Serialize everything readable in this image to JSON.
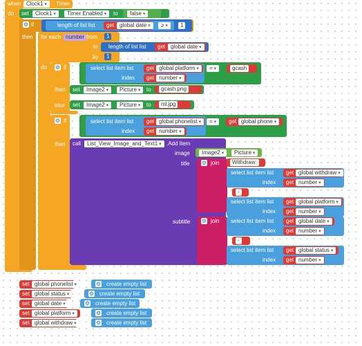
{
  "event": {
    "when": "when",
    "component": "Clock1",
    "event_name": "Timer",
    "do": "do"
  },
  "set_timer": {
    "set": "set",
    "component": "Clock1",
    "property": "Timer Enabled",
    "to": "to",
    "value": "false"
  },
  "if1": {
    "if": "if",
    "then": "then",
    "length_of_list": "length of list  list",
    "get": "get",
    "var": "global date",
    "op": "≥",
    "num": "1"
  },
  "foreach": {
    "for_each": "for each",
    "var": "number",
    "from": "from",
    "from_val": "1",
    "to": "to",
    "length_of_list": "length of list  list",
    "get": "get",
    "list_var": "global date",
    "by": "by",
    "by_val": "1",
    "do": "do"
  },
  "if2": {
    "if": "if",
    "select": "select list item  list",
    "get": "get",
    "list_var": "global platform",
    "index": "index",
    "index_var": "number",
    "op": "=",
    "text": "gcash",
    "then": "then",
    "else": "else",
    "then_set": "set",
    "then_comp": "Image2",
    "then_prop": "Picture",
    "then_to": "to",
    "then_val": "gcash.png",
    "else_set": "set",
    "else_comp": "Image2",
    "else_prop": "Picture",
    "else_to": "to",
    "else_val": "ml.jpg"
  },
  "if3": {
    "if": "if",
    "select": "select list item  list",
    "get": "get",
    "list_var": "global phonelist",
    "index": "index",
    "index_var": "number",
    "op": "=",
    "cmp_var": "global phone",
    "then": "then"
  },
  "call": {
    "call": "call",
    "component": "List_View_Image_and_Text1",
    "method": ".Add Item",
    "image": "image",
    "image_comp": "Image2",
    "image_prop": "Picture",
    "title": "title",
    "join": "join",
    "title_text1": "Withdraw:",
    "sel": "select list item  list",
    "get": "get",
    "index": "index",
    "number": "number",
    "t_var1": "global withdraw",
    "t_dash": "-",
    "t_var2": "global platform",
    "subtitle": "subtitle",
    "s_var1": "global date",
    "s_dash": "-",
    "s_var2": "global status"
  },
  "sets": [
    {
      "set": "set",
      "var": "global phonelist",
      "to": "to",
      "val": "create empty list"
    },
    {
      "set": "set",
      "var": "global status",
      "to": "to",
      "val": "create empty list"
    },
    {
      "set": "set",
      "var": "global date",
      "to": "to",
      "val": "create empty list"
    },
    {
      "set": "set",
      "var": "global platform",
      "to": "to",
      "val": "create empty list"
    },
    {
      "set": "set",
      "var": "global withdraw",
      "to": "to",
      "val": "create empty list"
    }
  ]
}
